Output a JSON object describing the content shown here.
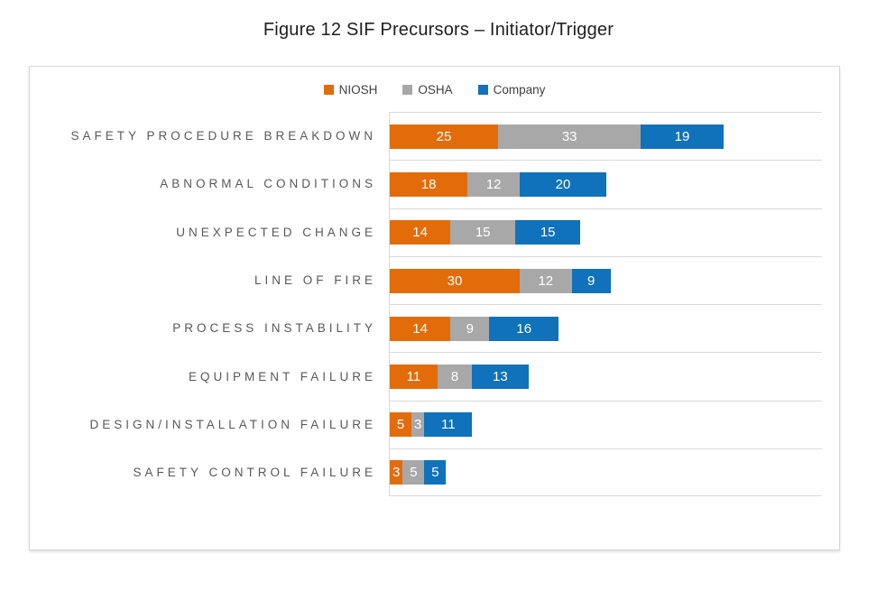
{
  "figure": {
    "title": "Figure 12 SIF Precursors – Initiator/Trigger"
  },
  "chart_data": {
    "type": "bar",
    "orientation": "horizontal",
    "stacked": true,
    "title": "Figure 12 SIF Precursors – Initiator/Trigger",
    "legend_position": "top-center",
    "data_labels": "inside-center-white",
    "grid": "category-separator-lines",
    "xlim": [
      0,
      100
    ],
    "categories": [
      "SAFETY PROCEDURE BREAKDOWN",
      "ABNORMAL CONDITIONS",
      "UNEXPECTED CHANGE",
      "LINE OF FIRE",
      "PROCESS INSTABILITY",
      "EQUIPMENT FAILURE",
      "DESIGN/INSTALLATION FAILURE",
      "SAFETY CONTROL FAILURE"
    ],
    "series": [
      {
        "name": "NIOSH",
        "color": "#E36C0A",
        "values": [
          25,
          18,
          14,
          30,
          14,
          11,
          5,
          3
        ]
      },
      {
        "name": "OSHA",
        "color": "#A8A8A8",
        "values": [
          33,
          12,
          15,
          12,
          9,
          8,
          3,
          5
        ]
      },
      {
        "name": "Company",
        "color": "#1072BA",
        "values": [
          19,
          20,
          15,
          9,
          16,
          13,
          11,
          5
        ]
      }
    ]
  },
  "colors": {
    "niosh_orange": "#E36C0A",
    "osha_gray": "#A8A8A8",
    "company_blue": "#1072BA",
    "gridline": "#D9D9D9",
    "category_label": "#595959",
    "title_text": "#1F1F1F",
    "legend_text": "#404040",
    "value_label": "#FFFFFF"
  }
}
